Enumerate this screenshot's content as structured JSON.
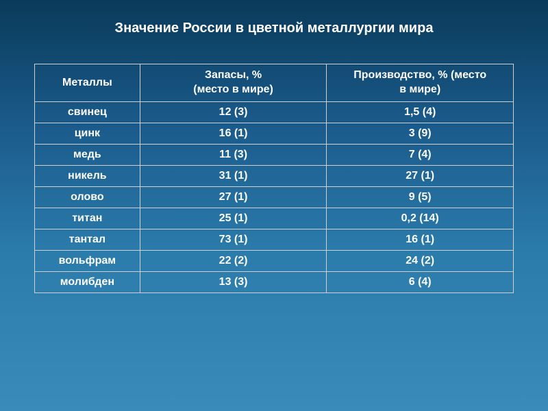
{
  "title": "Значение России в цветной металлургии мира",
  "title_fontsize": 20,
  "background_gradient": [
    "#0a3a5a",
    "#1a5a8a",
    "#2a7aaa",
    "#3a8aba"
  ],
  "text_color": "#ffffff",
  "border_color": "#d0d0d0",
  "cell_fontsize": 16,
  "header_fontsize": 16,
  "table": {
    "columns": [
      {
        "key": "metal",
        "label": "Металлы"
      },
      {
        "key": "reserves",
        "label_line1": "Запасы, %",
        "label_line2": "(место в мире)"
      },
      {
        "key": "production",
        "label_line1": "Производство, % (место",
        "label_line2": "в мире)"
      }
    ],
    "rows": [
      {
        "metal": "свинец",
        "reserves": "12 (3)",
        "production": "1,5 (4)"
      },
      {
        "metal": "цинк",
        "reserves": "16 (1)",
        "production": "3 (9)"
      },
      {
        "metal": "медь",
        "reserves": "11 (3)",
        "production": "7 (4)"
      },
      {
        "metal": "никель",
        "reserves": "31 (1)",
        "production": "27 (1)"
      },
      {
        "metal": "олово",
        "reserves": "27 (1)",
        "production": "9 (5)"
      },
      {
        "metal": "титан",
        "reserves": "25 (1)",
        "production": "0,2 (14)"
      },
      {
        "metal": "тантал",
        "reserves": "73 (1)",
        "production": "16 (1)"
      },
      {
        "metal": "вольфрам",
        "reserves": "22 (2)",
        "production": "24 (2)"
      },
      {
        "metal": "молибден",
        "reserves": "13 (3)",
        "production": "6 (4)"
      }
    ]
  }
}
